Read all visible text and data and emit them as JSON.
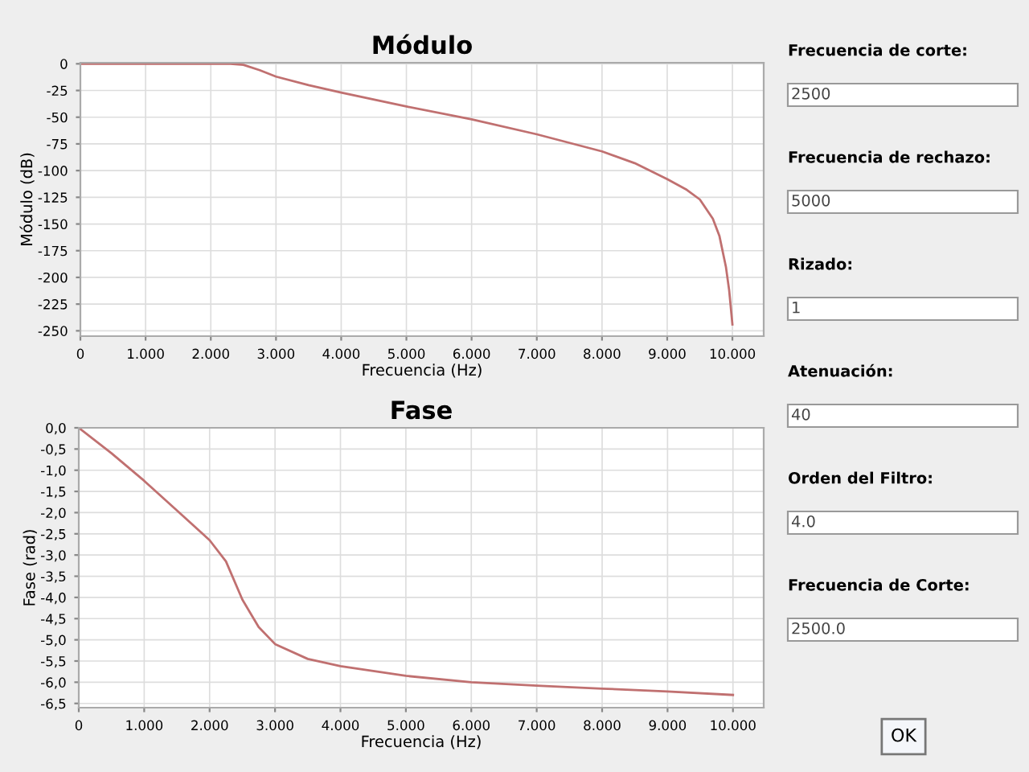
{
  "chart_data": [
    {
      "type": "line",
      "title": "Módulo",
      "xlabel": "Frecuencia (Hz)",
      "ylabel": "Módulo (dB)",
      "x": [
        0,
        500,
        1000,
        1500,
        2000,
        2300,
        2500,
        2750,
        3000,
        3500,
        4000,
        5000,
        6000,
        7000,
        8000,
        8500,
        9000,
        9300,
        9500,
        9700,
        9800,
        9900,
        9950,
        10000
      ],
      "series": [
        {
          "color": "#c07070",
          "values": [
            0,
            0,
            0,
            0,
            0,
            0,
            -1,
            -6,
            -12,
            -20,
            -27,
            -40,
            -52,
            -66,
            -82,
            -93,
            -108,
            -118,
            -127,
            -145,
            -161,
            -190,
            -212,
            -244
          ]
        }
      ],
      "xlim": [
        0,
        10480
      ],
      "ylim": [
        -255,
        1
      ],
      "xticks": [
        0,
        {
          "value": 1000,
          "label": "1.000"
        },
        {
          "value": 2000,
          "label": "2.000"
        },
        {
          "value": 3000,
          "label": "3.000"
        },
        {
          "value": 4000,
          "label": "4.000"
        },
        {
          "value": 5000,
          "label": "5.000"
        },
        {
          "value": 6000,
          "label": "6.000"
        },
        {
          "value": 7000,
          "label": "7.000"
        },
        {
          "value": 8000,
          "label": "8.000"
        },
        {
          "value": 9000,
          "label": "9.000"
        },
        {
          "value": 10000,
          "label": "10.000"
        }
      ],
      "yticks": [
        0,
        -25,
        -50,
        -75,
        -100,
        -125,
        -150,
        -175,
        -200,
        -225,
        -250
      ],
      "grid": true,
      "line_style": "solid"
    },
    {
      "type": "line",
      "title": "Fase",
      "xlabel": "Frecuencia (Hz)",
      "ylabel": "Fase (rad)",
      "x": [
        0,
        500,
        1000,
        1500,
        2000,
        2250,
        2500,
        2750,
        3000,
        3500,
        4000,
        5000,
        6000,
        7000,
        8000,
        9000,
        10000
      ],
      "series": [
        {
          "color": "#c07070",
          "values": [
            0,
            -0.6,
            -1.25,
            -1.95,
            -2.65,
            -3.15,
            -4.05,
            -4.7,
            -5.1,
            -5.45,
            -5.62,
            -5.85,
            -6.0,
            -6.08,
            -6.15,
            -6.22,
            -6.3
          ]
        }
      ],
      "xlim": [
        0,
        10470
      ],
      "ylim": [
        -6.6,
        0
      ],
      "xticks": [
        0,
        {
          "value": 1000,
          "label": "1.000"
        },
        {
          "value": 2000,
          "label": "2.000"
        },
        {
          "value": 3000,
          "label": "3.000"
        },
        {
          "value": 4000,
          "label": "4.000"
        },
        {
          "value": 5000,
          "label": "5.000"
        },
        {
          "value": 6000,
          "label": "6.000"
        },
        {
          "value": 7000,
          "label": "7.000"
        },
        {
          "value": 8000,
          "label": "8.000"
        },
        {
          "value": 9000,
          "label": "9.000"
        },
        {
          "value": 10000,
          "label": "10.000"
        }
      ],
      "yticks": [
        {
          "value": 0,
          "label": "0,0"
        },
        {
          "value": -0.5,
          "label": "-0,5"
        },
        {
          "value": -1,
          "label": "-1,0"
        },
        {
          "value": -1.5,
          "label": "-1,5"
        },
        {
          "value": -2,
          "label": "-2,0"
        },
        {
          "value": -2.5,
          "label": "-2,5"
        },
        {
          "value": -3,
          "label": "-3,0"
        },
        {
          "value": -3.5,
          "label": "-3,5"
        },
        {
          "value": -4,
          "label": "-4,0"
        },
        {
          "value": -4.5,
          "label": "-4,5"
        },
        {
          "value": -5,
          "label": "-5,0"
        },
        {
          "value": -5.5,
          "label": "-5,5"
        },
        {
          "value": -6,
          "label": "-6,0"
        },
        {
          "value": -6.5,
          "label": "-6,5"
        }
      ],
      "grid": true,
      "line_style": "solid"
    },
    {
      "type": "other",
      "annotations": [
        "Frecuencia de corte:",
        "2500",
        "Frecuencia de rechazo:",
        "5000",
        "Rizado:",
        "1",
        "Atenuación:",
        "40",
        "Orden del Filtro:",
        "4.0",
        "Frecuencia de Corte:",
        "2500.0",
        "OK"
      ]
    }
  ]
}
